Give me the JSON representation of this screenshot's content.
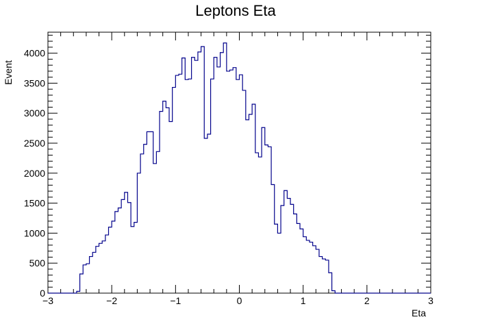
{
  "chart_data": {
    "type": "histogram",
    "title": "Leptons Eta",
    "xlabel": "Eta",
    "ylabel": "Event",
    "xlim": [
      -3,
      3
    ],
    "ylim": [
      0,
      4350
    ],
    "x_ticks": [
      -3,
      -2,
      -1,
      0,
      1,
      2,
      3
    ],
    "x_tick_labels": [
      "−3",
      "−2",
      "−1",
      "0",
      "1",
      "2",
      "3"
    ],
    "y_ticks": [
      0,
      500,
      1000,
      1500,
      2000,
      2500,
      3000,
      3500,
      4000
    ],
    "y_tick_labels": [
      "0",
      "500",
      "1000",
      "1500",
      "2000",
      "2500",
      "3000",
      "3500",
      "4000"
    ],
    "bin_width": 0.05,
    "bin_start": -3.0,
    "line_color": "#00008b",
    "values": [
      0,
      0,
      0,
      0,
      0,
      0,
      0,
      0,
      0,
      30,
      320,
      470,
      490,
      610,
      680,
      780,
      830,
      870,
      970,
      1100,
      1200,
      1360,
      1420,
      1560,
      1680,
      1510,
      1110,
      1180,
      2000,
      2320,
      2480,
      2690,
      2690,
      2160,
      2360,
      3030,
      3200,
      3090,
      2860,
      3430,
      3630,
      3650,
      3920,
      3560,
      3570,
      3930,
      3880,
      4020,
      4110,
      2580,
      2650,
      3570,
      3930,
      3770,
      4010,
      4170,
      3700,
      3720,
      3760,
      3560,
      3640,
      3380,
      2890,
      2980,
      3150,
      2340,
      2270,
      2760,
      2470,
      2440,
      1810,
      1150,
      1000,
      1460,
      1710,
      1580,
      1480,
      1320,
      1160,
      1070,
      940,
      880,
      850,
      790,
      730,
      610,
      570,
      550,
      340,
      40,
      0,
      0,
      0,
      0,
      0,
      0,
      0,
      0,
      0,
      0,
      0,
      0,
      0,
      0,
      0,
      0,
      0,
      0,
      0,
      0,
      0,
      0,
      0,
      0,
      0,
      0,
      0,
      0,
      0,
      0
    ]
  }
}
